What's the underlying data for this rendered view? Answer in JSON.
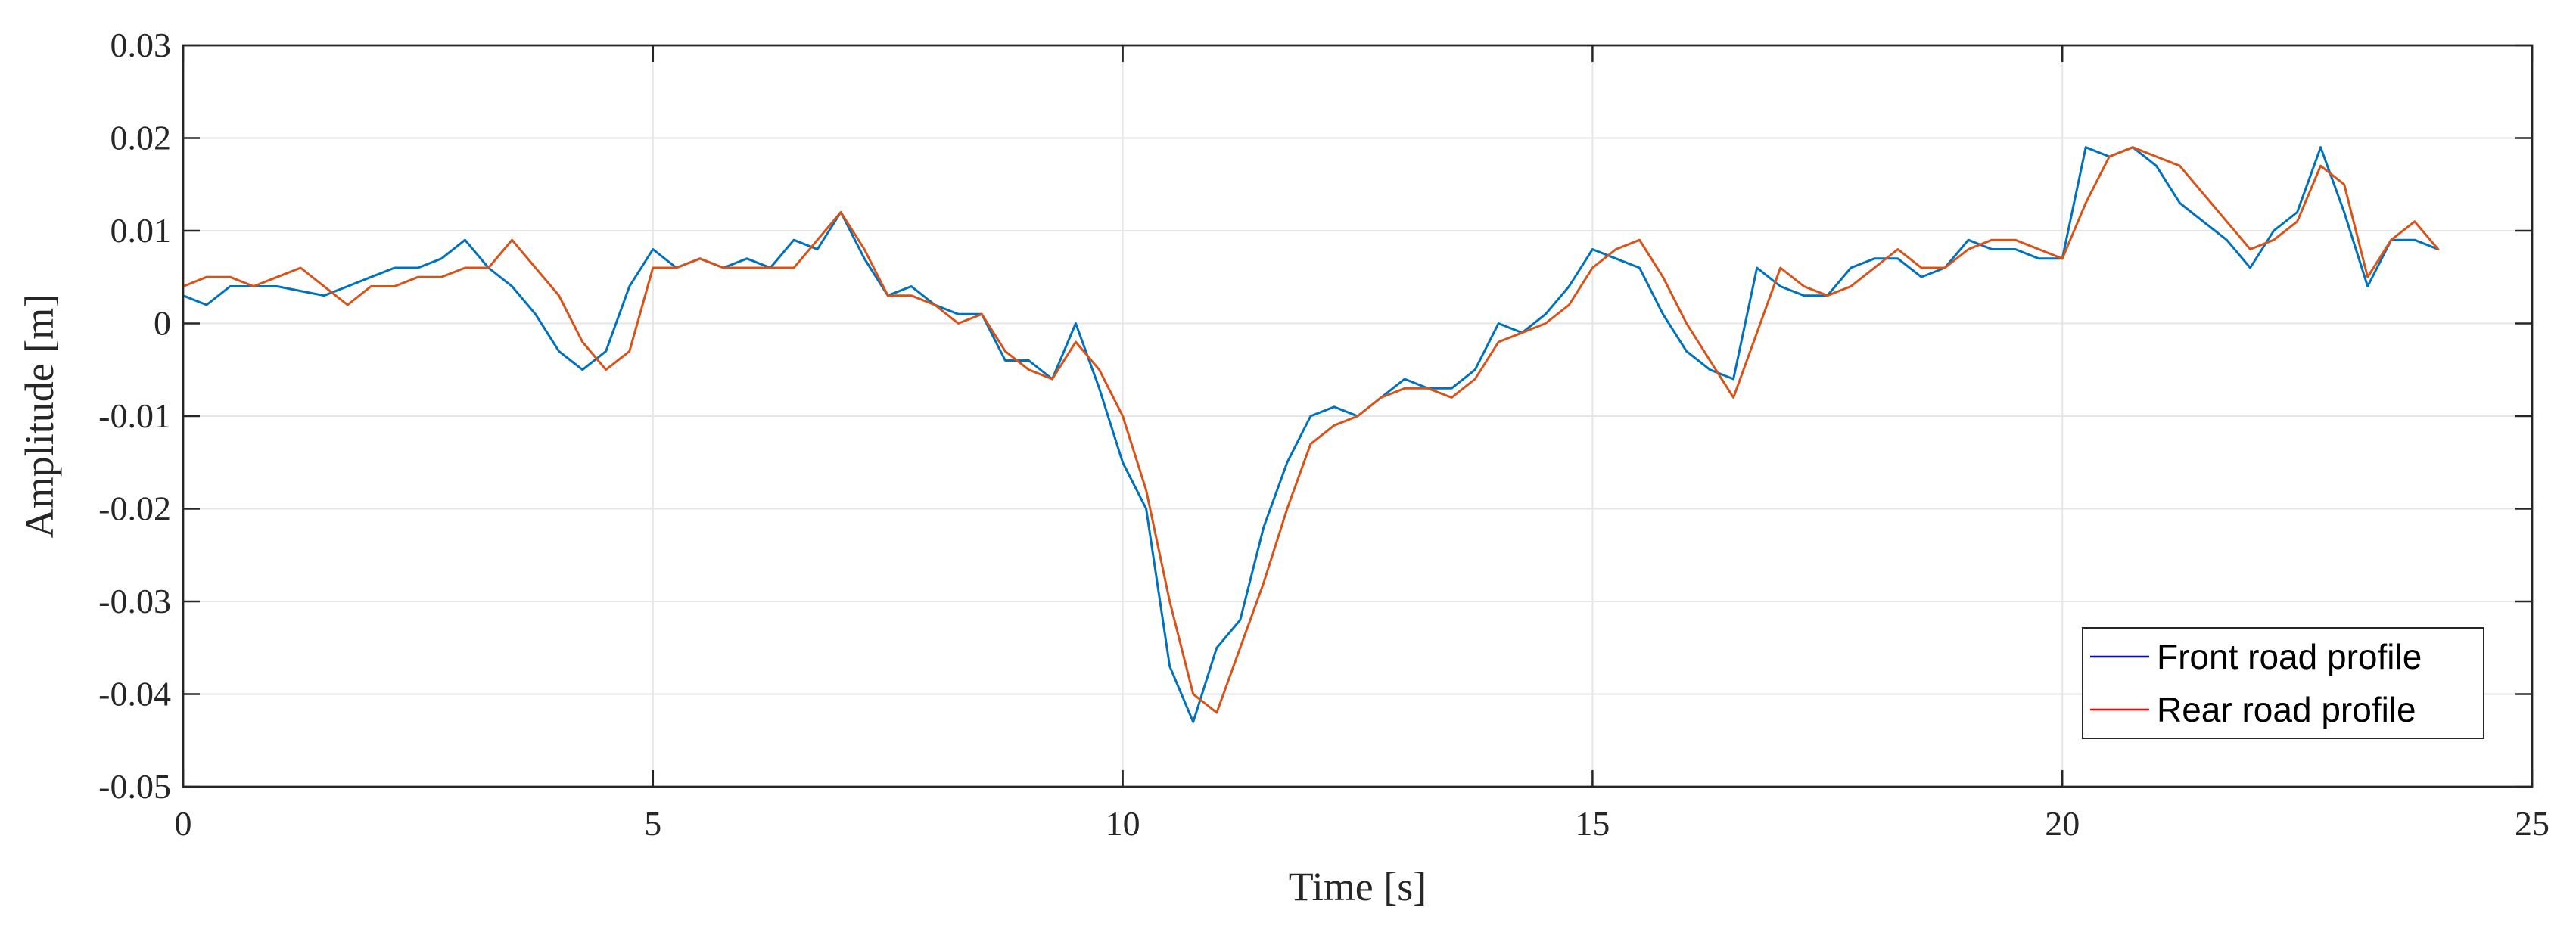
{
  "chart_data": {
    "type": "line",
    "title": "",
    "xlabel": "Time [s]",
    "ylabel": "Amplitude [m]",
    "xlim": [
      0,
      25
    ],
    "ylim": [
      -0.05,
      0.03
    ],
    "xticks": [
      0,
      5,
      10,
      15,
      20,
      25
    ],
    "xtick_labels": [
      "0",
      "5",
      "10",
      "15",
      "20",
      "25"
    ],
    "yticks": [
      0.03,
      0.02,
      0.01,
      0,
      -0.01,
      -0.02,
      -0.03,
      -0.04,
      -0.05
    ],
    "ytick_labels": [
      "0.03",
      "0.02",
      "0.01",
      "0",
      "-0.01",
      "-0.02",
      "-0.03",
      "-0.04",
      "-0.05"
    ],
    "grid": true,
    "legend_position": "bottom-right",
    "series": [
      {
        "name": "Front road profile",
        "legend_color": "#0000ff",
        "color": "#0072BD",
        "x": [
          0,
          0.25,
          0.5,
          0.75,
          1.0,
          1.25,
          1.5,
          1.75,
          2.0,
          2.25,
          2.5,
          2.75,
          3.0,
          3.25,
          3.5,
          3.75,
          4.0,
          4.25,
          4.5,
          4.75,
          5.0,
          5.25,
          5.5,
          5.75,
          6.0,
          6.25,
          6.5,
          6.75,
          7.0,
          7.25,
          7.5,
          7.75,
          8.0,
          8.25,
          8.5,
          8.75,
          9.0,
          9.25,
          9.5,
          9.75,
          10.0,
          10.25,
          10.5,
          10.75,
          11.0,
          11.25,
          11.5,
          11.75,
          12.0,
          12.25,
          12.5,
          12.75,
          13.0,
          13.25,
          13.5,
          13.75,
          14.0,
          14.25,
          14.5,
          14.75,
          15.0,
          15.25,
          15.5,
          15.75,
          16.0,
          16.25,
          16.5,
          16.75,
          17.0,
          17.25,
          17.5,
          17.75,
          18.0,
          18.25,
          18.5,
          18.75,
          19.0,
          19.25,
          19.5,
          19.75,
          20.0,
          20.25,
          20.5,
          20.75,
          21.0,
          21.25,
          21.5,
          21.75,
          22.0,
          22.25,
          22.5,
          22.75,
          23.0,
          23.25,
          23.5,
          23.75,
          24.0
        ],
        "y": [
          0.003,
          0.002,
          0.004,
          0.004,
          0.004,
          0.0035,
          0.003,
          0.004,
          0.005,
          0.006,
          0.006,
          0.007,
          0.009,
          0.006,
          0.004,
          0.001,
          -0.003,
          -0.005,
          -0.003,
          0.004,
          0.008,
          0.006,
          0.007,
          0.006,
          0.007,
          0.006,
          0.009,
          0.008,
          0.012,
          0.007,
          0.003,
          0.004,
          0.002,
          0.001,
          0.001,
          -0.004,
          -0.004,
          -0.006,
          0.0,
          -0.007,
          -0.015,
          -0.02,
          -0.037,
          -0.043,
          -0.035,
          -0.032,
          -0.022,
          -0.015,
          -0.01,
          -0.009,
          -0.01,
          -0.008,
          -0.006,
          -0.007,
          -0.007,
          -0.005,
          0.0,
          -0.001,
          0.001,
          0.004,
          0.008,
          0.007,
          0.006,
          0.001,
          -0.003,
          -0.005,
          -0.006,
          0.006,
          0.004,
          0.003,
          0.003,
          0.006,
          0.007,
          0.007,
          0.005,
          0.006,
          0.009,
          0.008,
          0.008,
          0.007,
          0.007,
          0.019,
          0.018,
          0.019,
          0.017,
          0.013,
          0.011,
          0.009,
          0.006,
          0.01,
          0.012,
          0.019,
          0.012,
          0.004,
          0.009,
          0.009,
          0.008
        ]
      },
      {
        "name": "Rear road profile",
        "legend_color": "#ff0000",
        "color": "#D95319",
        "x": [
          0,
          0.25,
          0.5,
          0.75,
          1.0,
          1.25,
          1.5,
          1.75,
          2.0,
          2.25,
          2.5,
          2.75,
          3.0,
          3.25,
          3.5,
          3.75,
          4.0,
          4.25,
          4.5,
          4.75,
          5.0,
          5.25,
          5.5,
          5.75,
          6.0,
          6.25,
          6.5,
          6.75,
          7.0,
          7.25,
          7.5,
          7.75,
          8.0,
          8.25,
          8.5,
          8.75,
          9.0,
          9.25,
          9.5,
          9.75,
          10.0,
          10.25,
          10.5,
          10.75,
          11.0,
          11.25,
          11.5,
          11.75,
          12.0,
          12.25,
          12.5,
          12.75,
          13.0,
          13.25,
          13.5,
          13.75,
          14.0,
          14.25,
          14.5,
          14.75,
          15.0,
          15.25,
          15.5,
          15.75,
          16.0,
          16.25,
          16.5,
          16.75,
          17.0,
          17.25,
          17.5,
          17.75,
          18.0,
          18.25,
          18.5,
          18.75,
          19.0,
          19.25,
          19.5,
          19.75,
          20.0,
          20.25,
          20.5,
          20.75,
          21.0,
          21.25,
          21.5,
          21.75,
          22.0,
          22.25,
          22.5,
          22.75,
          23.0,
          23.25,
          23.5,
          23.75,
          24.0
        ],
        "y": [
          0.004,
          0.005,
          0.005,
          0.004,
          0.005,
          0.006,
          0.004,
          0.002,
          0.004,
          0.004,
          0.005,
          0.005,
          0.006,
          0.006,
          0.009,
          0.006,
          0.003,
          -0.002,
          -0.005,
          -0.003,
          0.006,
          0.006,
          0.007,
          0.006,
          0.006,
          0.006,
          0.006,
          0.009,
          0.012,
          0.008,
          0.003,
          0.003,
          0.002,
          0.0,
          0.001,
          -0.003,
          -0.005,
          -0.006,
          -0.002,
          -0.005,
          -0.01,
          -0.018,
          -0.03,
          -0.04,
          -0.042,
          -0.035,
          -0.028,
          -0.02,
          -0.013,
          -0.011,
          -0.01,
          -0.008,
          -0.007,
          -0.007,
          -0.008,
          -0.006,
          -0.002,
          -0.001,
          0.0,
          0.002,
          0.006,
          0.008,
          0.009,
          0.005,
          0.0,
          -0.004,
          -0.008,
          -0.001,
          0.006,
          0.004,
          0.003,
          0.004,
          0.006,
          0.008,
          0.006,
          0.006,
          0.008,
          0.009,
          0.009,
          0.008,
          0.007,
          0.013,
          0.018,
          0.019,
          0.018,
          0.017,
          0.014,
          0.011,
          0.008,
          0.009,
          0.011,
          0.017,
          0.015,
          0.005,
          0.009,
          0.011,
          0.008
        ]
      }
    ]
  }
}
